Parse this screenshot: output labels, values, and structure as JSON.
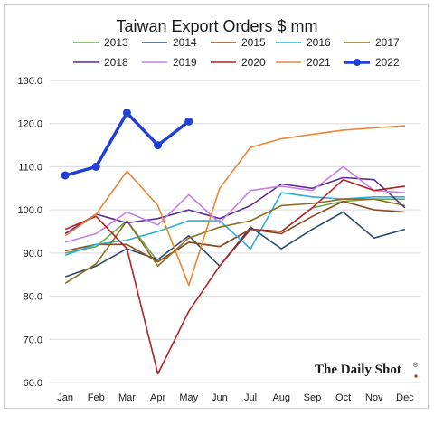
{
  "chart_data": {
    "type": "line",
    "title": "Taiwan Export Orders $ mm",
    "categories": [
      "Jan",
      "Feb",
      "Mar",
      "Apr",
      "May",
      "Jun",
      "Jul",
      "Aug",
      "Sep",
      "Oct",
      "Nov",
      "Dec"
    ],
    "ylim": [
      60,
      130
    ],
    "yticks": [
      "60.0",
      "70.0",
      "80.0",
      "90.0",
      "100.0",
      "110.0",
      "120.0",
      "130.0"
    ],
    "grid": true,
    "legend_position": "top",
    "series": [
      {
        "name": "2013",
        "color": "#6aa84f",
        "values": [
          90.0,
          91.5,
          97.5,
          88.0,
          92.5,
          91.5,
          95.5,
          95.0,
          100.5,
          102.0,
          102.5,
          102.5
        ]
      },
      {
        "name": "2014",
        "color": "#2e4a6b",
        "values": [
          84.5,
          87.0,
          91.0,
          88.5,
          94.0,
          87.0,
          96.0,
          91.0,
          95.5,
          99.5,
          93.5,
          95.5
        ]
      },
      {
        "name": "2015",
        "color": "#8b4a1e",
        "values": [
          90.5,
          92.0,
          92.0,
          88.0,
          92.5,
          91.5,
          95.5,
          94.5,
          98.5,
          102.0,
          100.0,
          99.5
        ]
      },
      {
        "name": "2016",
        "color": "#2ab0d8",
        "values": [
          89.5,
          92.0,
          93.0,
          95.0,
          97.5,
          97.5,
          91.0,
          104.0,
          103.0,
          102.5,
          103.0,
          103.0
        ]
      },
      {
        "name": "2017",
        "color": "#8c6d1f",
        "values": [
          83.0,
          87.5,
          97.5,
          87.0,
          93.5,
          96.0,
          97.5,
          101.0,
          101.5,
          102.5,
          102.5,
          101.0
        ]
      },
      {
        "name": "2018",
        "color": "#5b2c91",
        "values": [
          94.5,
          99.0,
          97.0,
          98.0,
          100.0,
          98.0,
          101.0,
          106.0,
          105.0,
          107.5,
          107.0,
          100.5
        ]
      },
      {
        "name": "2019",
        "color": "#c77ee8",
        "values": [
          92.5,
          94.5,
          99.5,
          96.5,
          103.5,
          97.0,
          104.5,
          105.5,
          104.5,
          110.0,
          104.5,
          104.0
        ]
      },
      {
        "name": "2020",
        "color": "#b22222",
        "values": [
          95.5,
          98.5,
          91.0,
          62.0,
          76.5,
          87.0,
          95.5,
          95.0,
          100.5,
          107.0,
          104.5,
          105.5
        ]
      },
      {
        "name": "2021",
        "color": "#ee8533",
        "values": [
          94.0,
          99.0,
          109.0,
          101.0,
          82.5,
          105.0,
          114.5,
          116.5,
          117.5,
          118.5,
          119.0,
          119.5
        ]
      },
      {
        "name": "2022",
        "color": "#1f3fd6",
        "values": [
          108.0,
          110.0,
          122.5,
          115.0,
          120.5,
          null,
          null,
          null,
          null,
          null,
          null,
          null
        ],
        "emphasis": true
      }
    ]
  },
  "brand": {
    "text": "The Daily Shot",
    "mark": "®"
  }
}
